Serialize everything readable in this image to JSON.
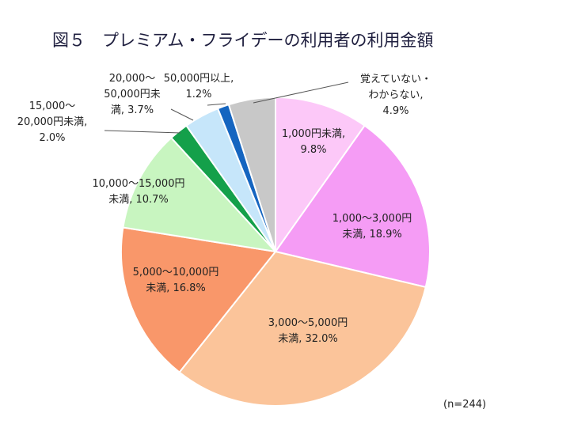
{
  "chart_data": {
    "type": "pie",
    "title": "図５　プレミアム・フライデーの利用者の利用金額",
    "note": "(n=244)",
    "slices": [
      {
        "label": "1,000円未満",
        "value": 9.8,
        "value_label": "9.8%",
        "color": "#fcc8f8"
      },
      {
        "label": "1,000〜3,000円未満",
        "value": 18.9,
        "value_label": "18.9%",
        "color": "#f59cf5"
      },
      {
        "label": "3,000〜5,000円未満",
        "value": 32.0,
        "value_label": "32.0%",
        "color": "#fbc49a"
      },
      {
        "label": "5,000〜10,000円未満",
        "value": 16.8,
        "value_label": "16.8%",
        "color": "#f9976a"
      },
      {
        "label": "10,000〜15,000円未満",
        "value": 10.7,
        "value_label": "10.7%",
        "color": "#c8f5c0"
      },
      {
        "label": "15,000〜20,000円未満",
        "value": 2.0,
        "value_label": "2.0%",
        "color": "#14a04a"
      },
      {
        "label": "20,000〜50,000円未満",
        "value": 3.7,
        "value_label": "3.7%",
        "color": "#c6e6fa"
      },
      {
        "label": "50,000円以上",
        "value": 1.2,
        "value_label": "1.2%",
        "color": "#1565c0"
      },
      {
        "label": "覚えていない・わからない",
        "value": 4.9,
        "value_label": "4.9%",
        "color": "#c8c8c8"
      }
    ],
    "label_lines": [
      [
        "1,000円未満,",
        "9.8%"
      ],
      [
        "1,000〜3,000円",
        "未満, 18.9%"
      ],
      [
        "3,000〜5,000円",
        "未満, 32.0%"
      ],
      [
        "5,000〜10,000円",
        "未満, 16.8%"
      ],
      [
        "10,000〜15,000円",
        "未満, 10.7%"
      ],
      [
        "15,000〜",
        "20,000円未満,",
        "2.0%"
      ],
      [
        "20,000〜",
        "50,000円未",
        "満, 3.7%"
      ],
      [
        "50,000円以上,",
        "1.2%"
      ],
      [
        "覚えていない・",
        "わからない,",
        "4.9%"
      ]
    ]
  }
}
